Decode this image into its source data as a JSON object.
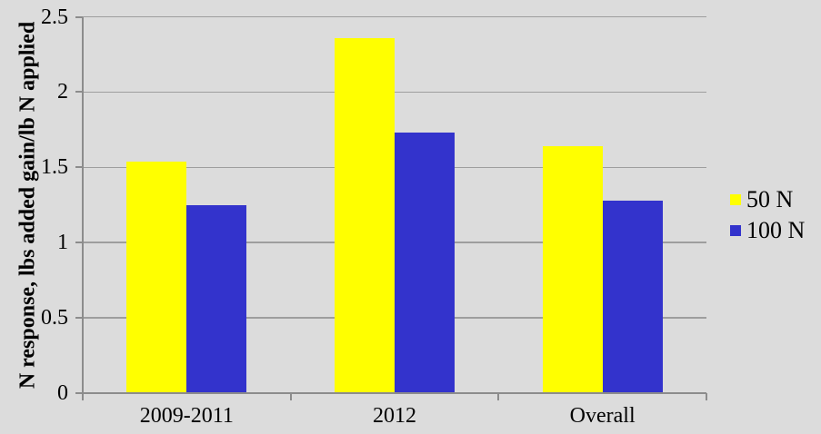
{
  "chart_data": {
    "type": "bar",
    "title": "",
    "categories": [
      "2009-2011",
      "2012",
      "Overall"
    ],
    "series": [
      {
        "name": "50 N",
        "color": "#FFFF00",
        "values": [
          1.54,
          2.36,
          1.64
        ]
      },
      {
        "name": "100 N",
        "color": "#3333CC",
        "values": [
          1.25,
          1.73,
          1.28
        ]
      }
    ],
    "xlabel": "",
    "ylabel": "N response, lbs added gain/lb N applied",
    "ylim": [
      0,
      2.5
    ],
    "ytick_step": 0.5,
    "ytick_labels": [
      "0",
      "0.5",
      "1",
      "1.5",
      "2",
      "2.5"
    ],
    "grid": true,
    "legend_position": "right",
    "colors": {
      "background": "#DCDCDC",
      "gridline": "#9E9E9E",
      "axis": "#8C8C8C",
      "text": "#000000"
    }
  }
}
